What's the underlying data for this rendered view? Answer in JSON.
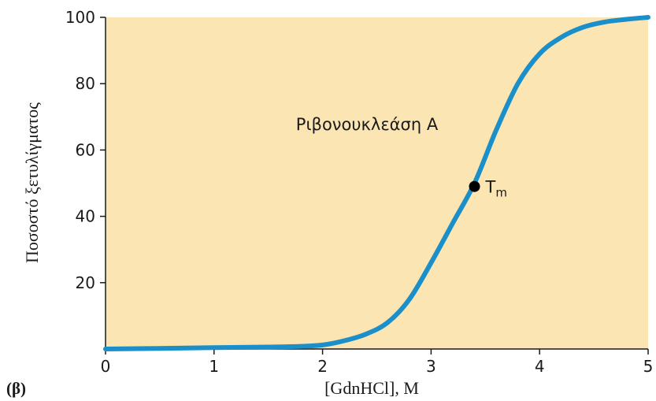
{
  "panel_label": "(β)",
  "chart_data": {
    "type": "line",
    "annotation": "Ριβονουκλεάση Α",
    "xlabel": "[GdnHCl],  M",
    "ylabel": "Ποσοστό ξετυλίγματος",
    "xlim": [
      0,
      5
    ],
    "ylim": [
      0,
      100
    ],
    "x_ticks": [
      0,
      1,
      2,
      3,
      4,
      5
    ],
    "y_ticks": [
      20,
      40,
      60,
      80,
      100
    ],
    "grid": false,
    "series": [
      {
        "color": "#1a8fc9",
        "x": [
          0,
          0.5,
          1.0,
          1.5,
          1.8,
          2.0,
          2.2,
          2.4,
          2.6,
          2.8,
          3.0,
          3.2,
          3.4,
          3.6,
          3.8,
          4.0,
          4.2,
          4.4,
          4.6,
          4.8,
          5.0
        ],
        "y": [
          0,
          0.2,
          0.4,
          0.6,
          0.8,
          1.2,
          2.5,
          4.5,
          8,
          15,
          26,
          38,
          50,
          66,
          80,
          89,
          94,
          97,
          98.6,
          99.4,
          100
        ]
      }
    ],
    "markers": [
      {
        "x": 3.4,
        "y": 49,
        "label": "T",
        "label_sub": "m"
      }
    ],
    "colors": {
      "plot_background": "#fbe5b2",
      "curve": "#1a8fc9",
      "marker": "#000000"
    }
  }
}
